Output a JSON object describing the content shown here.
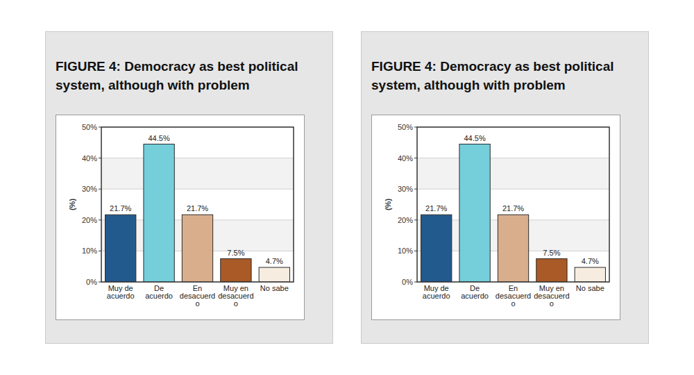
{
  "chart_data": [
    {
      "type": "bar",
      "title": "FIGURE 4: Democracy as best political system, although with problem",
      "y_label": "(%)",
      "categories": [
        "Muy de acuerdo",
        "De acuerdo",
        "En desacuerdo",
        "Muy en desacuerdo",
        "No sabe"
      ],
      "values": [
        21.7,
        44.5,
        21.7,
        7.5,
        4.7
      ],
      "value_labels": [
        "21.7%",
        "44.5%",
        "21.7%",
        "7.5%",
        "4.7%"
      ],
      "colors": [
        "#235a8e",
        "#74cfdb",
        "#d8ae8c",
        "#a95a27",
        "#f6ece0"
      ],
      "ylim": [
        0,
        50
      ],
      "yticks": [
        {
          "value": 0,
          "label": "0%"
        },
        {
          "value": 10,
          "label": "10%"
        },
        {
          "value": 20,
          "label": "20%"
        },
        {
          "value": 30,
          "label": "30%"
        },
        {
          "value": 40,
          "label": "40%"
        },
        {
          "value": 50,
          "label": "50%"
        }
      ],
      "grid": true,
      "data_labels": true
    },
    {
      "type": "bar",
      "title": "FIGURE 4: Democracy as best political system, although with problem",
      "y_label": "(%)",
      "categories": [
        "Muy de acuerdo",
        "De acuerdo",
        "En desacuerdo",
        "Muy en desacuerdo",
        "No sabe"
      ],
      "values": [
        21.7,
        44.5,
        21.7,
        7.5,
        4.7
      ],
      "value_labels": [
        "21.7%",
        "44.5%",
        "21.7%",
        "7.5%",
        "4.7%"
      ],
      "colors": [
        "#235a8e",
        "#74cfdb",
        "#d8ae8c",
        "#a95a27",
        "#f6ece0"
      ],
      "ylim": [
        0,
        50
      ],
      "yticks": [
        {
          "value": 0,
          "label": "0%"
        },
        {
          "value": 10,
          "label": "10%"
        },
        {
          "value": 20,
          "label": "20%"
        },
        {
          "value": 30,
          "label": "30%"
        },
        {
          "value": 40,
          "label": "40%"
        },
        {
          "value": 50,
          "label": "50%"
        }
      ],
      "grid": true,
      "data_labels": true
    }
  ]
}
